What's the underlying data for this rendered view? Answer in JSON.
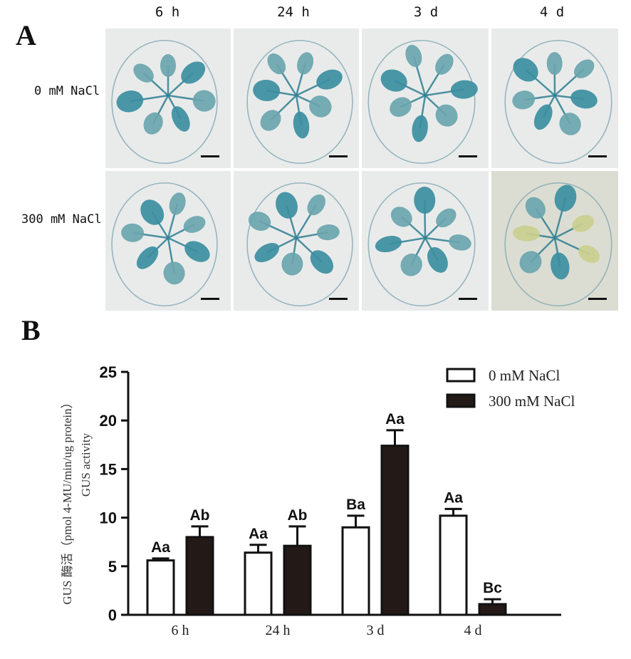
{
  "panel_a": {
    "label": "A",
    "columns": [
      "6 h",
      "24 h",
      "3 d",
      "4 d"
    ],
    "rows": [
      "0 mM NaCl",
      "300 mM NaCl"
    ]
  },
  "panel_b": {
    "label": "B"
  },
  "colors": {
    "gus_blue": "#2f7f93",
    "bar_outline": "#111111",
    "bar_open": "#ffffff",
    "bar_filled": "#231a18"
  },
  "chart_data": {
    "type": "bar",
    "categories": [
      "6 h",
      "24 h",
      "3 d",
      "4 d"
    ],
    "ylabel_line1": "GUS 酶活（pmol 4-MU/min/ug protein）",
    "ylabel_line2": "GUS activity",
    "ylim": [
      0,
      25
    ],
    "yticks": [
      0,
      5,
      10,
      15,
      20,
      25
    ],
    "legend_position": "top-right",
    "series": [
      {
        "name": "0 mM NaCl",
        "values": [
          5.6,
          6.4,
          9.0,
          10.2
        ],
        "errors": [
          0.2,
          0.8,
          1.2,
          0.7
        ],
        "letters": [
          "Aa",
          "Aa",
          "Ba",
          "Aa"
        ]
      },
      {
        "name": "300 mM NaCl",
        "values": [
          8.0,
          7.1,
          17.4,
          1.1
        ],
        "errors": [
          1.1,
          2.0,
          1.6,
          0.5
        ],
        "letters": [
          "Ab",
          "Ab",
          "Aa",
          "Bc"
        ]
      }
    ]
  }
}
